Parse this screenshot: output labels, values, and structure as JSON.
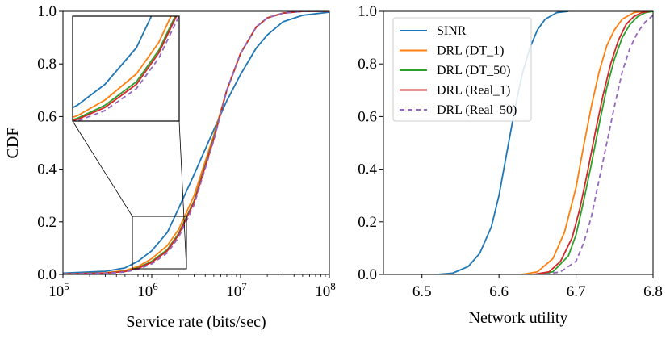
{
  "colors": {
    "sinr": "#1f77b4",
    "dt1": "#ff7f0e",
    "dt50": "#2ca02c",
    "real1": "#d62728",
    "real50": "#9467bd"
  },
  "chart_data": [
    {
      "type": "line",
      "xlabel": "Service rate (bits/sec)",
      "ylabel": "CDF",
      "xscale": "log",
      "xlim": [
        100000,
        100000000
      ],
      "ylim": [
        0.0,
        1.0
      ],
      "x_ticks": [
        {
          "base": "10",
          "exp": "5",
          "value": 100000
        },
        {
          "base": "10",
          "exp": "6",
          "value": 1000000
        },
        {
          "base": "10",
          "exp": "7",
          "value": 10000000
        },
        {
          "base": "10",
          "exp": "8",
          "value": 100000000
        }
      ],
      "y_ticks": [
        "0.0",
        "0.2",
        "0.4",
        "0.6",
        "0.8",
        "1.0"
      ],
      "inset": {
        "description_zoom_region_x": [
          660000,
          2600000
        ],
        "description_zoom_region_y": [
          0.02,
          0.22
        ]
      },
      "series": [
        {
          "key": "sinr",
          "style": "solid",
          "points": [
            [
              100000,
              0.005
            ],
            [
              300000,
              0.012
            ],
            [
              500000,
              0.025
            ],
            [
              700000,
              0.05
            ],
            [
              1000000,
              0.09
            ],
            [
              1500000,
              0.16
            ],
            [
              2000000,
              0.25
            ],
            [
              3000000,
              0.38
            ],
            [
              5000000,
              0.55
            ],
            [
              7000000,
              0.66
            ],
            [
              10000000,
              0.76
            ],
            [
              15000000,
              0.86
            ],
            [
              20000000,
              0.91
            ],
            [
              30000000,
              0.96
            ],
            [
              50000000,
              0.985
            ],
            [
              100000000,
              0.997
            ]
          ]
        },
        {
          "key": "dt1",
          "style": "solid",
          "points": [
            [
              100000,
              0.002
            ],
            [
              300000,
              0.006
            ],
            [
              500000,
              0.015
            ],
            [
              700000,
              0.03
            ],
            [
              1000000,
              0.06
            ],
            [
              1500000,
              0.11
            ],
            [
              2000000,
              0.17
            ],
            [
              3000000,
              0.3
            ],
            [
              5000000,
              0.53
            ],
            [
              7000000,
              0.7
            ],
            [
              10000000,
              0.84
            ],
            [
              15000000,
              0.94
            ],
            [
              20000000,
              0.975
            ],
            [
              30000000,
              0.993
            ],
            [
              50000000,
              1.0
            ],
            [
              100000000,
              1.0
            ]
          ]
        },
        {
          "key": "dt50",
          "style": "solid",
          "points": [
            [
              100000,
              0.002
            ],
            [
              300000,
              0.005
            ],
            [
              500000,
              0.012
            ],
            [
              700000,
              0.025
            ],
            [
              1000000,
              0.05
            ],
            [
              1500000,
              0.095
            ],
            [
              2000000,
              0.155
            ],
            [
              3000000,
              0.28
            ],
            [
              5000000,
              0.52
            ],
            [
              7000000,
              0.7
            ],
            [
              10000000,
              0.84
            ],
            [
              15000000,
              0.94
            ],
            [
              20000000,
              0.975
            ],
            [
              30000000,
              0.993
            ],
            [
              50000000,
              1.0
            ],
            [
              100000000,
              1.0
            ]
          ]
        },
        {
          "key": "real1",
          "style": "solid",
          "points": [
            [
              100000,
              0.002
            ],
            [
              300000,
              0.005
            ],
            [
              500000,
              0.011
            ],
            [
              700000,
              0.023
            ],
            [
              1000000,
              0.046
            ],
            [
              1500000,
              0.09
            ],
            [
              2000000,
              0.15
            ],
            [
              3000000,
              0.275
            ],
            [
              5000000,
              0.515
            ],
            [
              7000000,
              0.7
            ],
            [
              10000000,
              0.84
            ],
            [
              15000000,
              0.94
            ],
            [
              20000000,
              0.975
            ],
            [
              30000000,
              0.993
            ],
            [
              50000000,
              1.0
            ],
            [
              100000000,
              1.0
            ]
          ]
        },
        {
          "key": "real50",
          "style": "dashed",
          "points": [
            [
              100000,
              0.002
            ],
            [
              300000,
              0.004
            ],
            [
              500000,
              0.009
            ],
            [
              700000,
              0.02
            ],
            [
              1000000,
              0.04
            ],
            [
              1500000,
              0.082
            ],
            [
              2000000,
              0.14
            ],
            [
              3000000,
              0.265
            ],
            [
              5000000,
              0.51
            ],
            [
              7000000,
              0.7
            ],
            [
              10000000,
              0.84
            ],
            [
              15000000,
              0.94
            ],
            [
              20000000,
              0.975
            ],
            [
              30000000,
              0.993
            ],
            [
              50000000,
              1.0
            ],
            [
              100000000,
              1.0
            ]
          ]
        }
      ]
    },
    {
      "type": "line",
      "xlabel": "Network utility",
      "ylabel": "",
      "xlim": [
        6.45,
        6.8
      ],
      "ylim": [
        0.0,
        1.0
      ],
      "x_ticks": [
        "6.5",
        "6.6",
        "6.7",
        "6.8"
      ],
      "y_ticks": [
        "0.0",
        "0.2",
        "0.4",
        "0.6",
        "0.8",
        "1.0"
      ],
      "legend": {
        "placement": "upper-left",
        "entries": [
          {
            "key": "sinr",
            "label": "SINR",
            "style": "solid"
          },
          {
            "key": "dt1",
            "label": "DRL (DT_1)",
            "style": "solid"
          },
          {
            "key": "dt50",
            "label": "DRL (DT_50)",
            "style": "solid"
          },
          {
            "key": "real1",
            "label": "DRL (Real_1)",
            "style": "solid"
          },
          {
            "key": "real50",
            "label": "DRL (Real_50)",
            "style": "dashed"
          }
        ]
      },
      "series": [
        {
          "key": "sinr",
          "name": "SINR",
          "style": "solid",
          "points": [
            [
              6.52,
              0.0
            ],
            [
              6.54,
              0.005
            ],
            [
              6.56,
              0.03
            ],
            [
              6.575,
              0.08
            ],
            [
              6.59,
              0.18
            ],
            [
              6.6,
              0.3
            ],
            [
              6.61,
              0.46
            ],
            [
              6.62,
              0.62
            ],
            [
              6.63,
              0.76
            ],
            [
              6.64,
              0.86
            ],
            [
              6.65,
              0.93
            ],
            [
              6.66,
              0.97
            ],
            [
              6.675,
              0.995
            ],
            [
              6.69,
              1.0
            ]
          ]
        },
        {
          "key": "dt1",
          "name": "DRL (DT_1)",
          "style": "solid",
          "points": [
            [
              6.63,
              0.0
            ],
            [
              6.65,
              0.01
            ],
            [
              6.67,
              0.06
            ],
            [
              6.685,
              0.16
            ],
            [
              6.7,
              0.33
            ],
            [
              6.71,
              0.49
            ],
            [
              6.72,
              0.64
            ],
            [
              6.73,
              0.77
            ],
            [
              6.74,
              0.87
            ],
            [
              6.75,
              0.93
            ],
            [
              6.76,
              0.97
            ],
            [
              6.775,
              0.995
            ],
            [
              6.785,
              1.0
            ]
          ]
        },
        {
          "key": "dt50",
          "name": "DRL (DT_50)",
          "style": "solid",
          "points": [
            [
              6.65,
              0.0
            ],
            [
              6.67,
              0.01
            ],
            [
              6.69,
              0.07
            ],
            [
              6.7,
              0.15
            ],
            [
              6.71,
              0.28
            ],
            [
              6.72,
              0.42
            ],
            [
              6.73,
              0.57
            ],
            [
              6.74,
              0.71
            ],
            [
              6.75,
              0.82
            ],
            [
              6.76,
              0.9
            ],
            [
              6.77,
              0.95
            ],
            [
              6.78,
              0.98
            ],
            [
              6.79,
              0.995
            ],
            [
              6.8,
              1.0
            ]
          ]
        },
        {
          "key": "real1",
          "name": "DRL (Real_1)",
          "style": "solid",
          "points": [
            [
              6.645,
              0.0
            ],
            [
              6.665,
              0.01
            ],
            [
              6.68,
              0.05
            ],
            [
              6.695,
              0.14
            ],
            [
              6.705,
              0.25
            ],
            [
              6.715,
              0.39
            ],
            [
              6.725,
              0.54
            ],
            [
              6.735,
              0.68
            ],
            [
              6.745,
              0.8
            ],
            [
              6.755,
              0.89
            ],
            [
              6.765,
              0.95
            ],
            [
              6.775,
              0.98
            ],
            [
              6.785,
              0.995
            ],
            [
              6.795,
              1.0
            ]
          ]
        },
        {
          "key": "real50",
          "name": "DRL (Real_50)",
          "style": "dashed",
          "points": [
            [
              6.66,
              0.0
            ],
            [
              6.68,
              0.01
            ],
            [
              6.7,
              0.05
            ],
            [
              6.71,
              0.12
            ],
            [
              6.72,
              0.22
            ],
            [
              6.73,
              0.36
            ],
            [
              6.74,
              0.5
            ],
            [
              6.75,
              0.64
            ],
            [
              6.76,
              0.77
            ],
            [
              6.77,
              0.86
            ],
            [
              6.78,
              0.92
            ],
            [
              6.79,
              0.96
            ],
            [
              6.8,
              0.985
            ]
          ]
        }
      ]
    }
  ]
}
